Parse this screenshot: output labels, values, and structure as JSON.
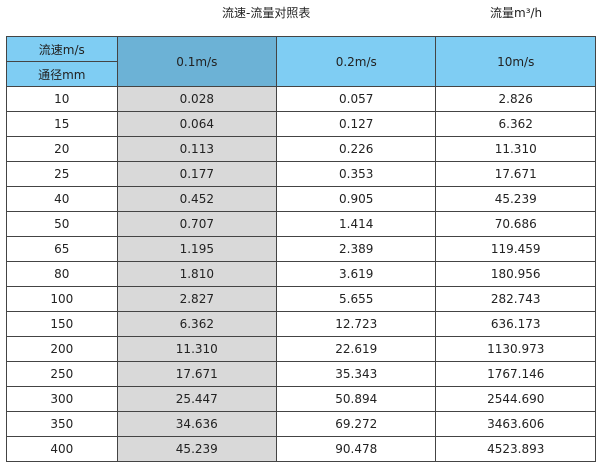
{
  "title": "流速-流量对照表",
  "unit_label": "流量m³/h",
  "colors": {
    "header": "#7fcdf3",
    "header_highlight": "#6cb2d6",
    "highlight_column": "#d9d9d9"
  },
  "table": {
    "corner_top": "流速m/s",
    "corner_bottom": "通径mm",
    "columns": [
      "0.1m/s",
      "0.2m/s",
      "10m/s"
    ],
    "rows": [
      [
        "10",
        "0.028",
        "0.057",
        "2.826"
      ],
      [
        "15",
        "0.064",
        "0.127",
        "6.362"
      ],
      [
        "20",
        "0.113",
        "0.226",
        "11.310"
      ],
      [
        "25",
        "0.177",
        "0.353",
        "17.671"
      ],
      [
        "40",
        "0.452",
        "0.905",
        "45.239"
      ],
      [
        "50",
        "0.707",
        "1.414",
        "70.686"
      ],
      [
        "65",
        "1.195",
        "2.389",
        "119.459"
      ],
      [
        "80",
        "1.810",
        "3.619",
        "180.956"
      ],
      [
        "100",
        "2.827",
        "5.655",
        "282.743"
      ],
      [
        "150",
        "6.362",
        "12.723",
        "636.173"
      ],
      [
        "200",
        "11.310",
        "22.619",
        "1130.973"
      ],
      [
        "250",
        "17.671",
        "35.343",
        "1767.146"
      ],
      [
        "300",
        "25.447",
        "50.894",
        "2544.690"
      ],
      [
        "350",
        "34.636",
        "69.272",
        "3463.606"
      ],
      [
        "400",
        "45.239",
        "90.478",
        "4523.893"
      ]
    ]
  }
}
